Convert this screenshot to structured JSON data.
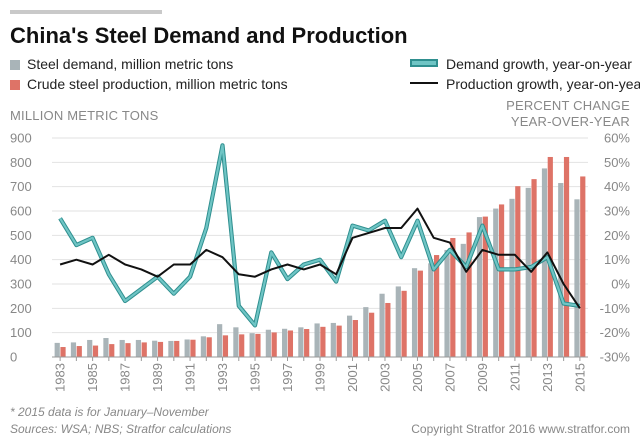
{
  "title": "China's Steel Demand and Production",
  "legend": {
    "demand_bar": "Steel demand, million metric tons",
    "production_bar": "Crude steel production, million metric tons",
    "demand_growth": "Demand growth, year-on-year",
    "production_growth": "Production growth, year-on-year"
  },
  "left_axis_title": "MILLION METRIC TONS",
  "right_axis_title": [
    "PERCENT CHANGE",
    "YEAR-OVER-YEAR"
  ],
  "footnote": "* 2015 data is for January–November",
  "sources": "Sources: WSA; NBS; Stratfor calculations",
  "credit": "Copyright Stratfor 2016   www.stratfor.com",
  "colors": {
    "demand_bar": "#a9b4b8",
    "production_bar": "#de7367",
    "demand_line": "#6fc5c5",
    "production_line": "#111111",
    "grid": "#e2e2e2",
    "tick_text": "#888888"
  },
  "chart_data": {
    "type": "bar",
    "categories": [
      "1983",
      "1984",
      "1985",
      "1986",
      "1987",
      "1988",
      "1989",
      "1990",
      "1991",
      "1992",
      "1993",
      "1994",
      "1995",
      "1996",
      "1997",
      "1998",
      "1999",
      "2000",
      "2001",
      "2002",
      "2003",
      "2004",
      "2005",
      "2006",
      "2007",
      "2008",
      "2009",
      "2010",
      "2011",
      "2012",
      "2013",
      "2014",
      "2015"
    ],
    "x_tick_labels": [
      "1983",
      "1985",
      "1987",
      "1989",
      "1991",
      "1993",
      "1995",
      "1997",
      "1999",
      "2001",
      "2003",
      "2005",
      "2007",
      "2009",
      "2011",
      "2013",
      "2015"
    ],
    "series": [
      {
        "name": "Steel demand, million metric tons",
        "type": "bar",
        "axis": "left",
        "values": [
          58,
          60,
          70,
          78,
          70,
          70,
          67,
          66,
          72,
          85,
          135,
          122,
          98,
          112,
          116,
          122,
          138,
          140,
          170,
          205,
          260,
          290,
          365,
          385,
          440,
          465,
          575,
          610,
          650,
          695,
          775,
          715,
          648
        ]
      },
      {
        "name": "Crude steel production, million metric tons",
        "type": "bar",
        "axis": "left",
        "values": [
          41,
          45,
          47,
          53,
          57,
          60,
          62,
          66,
          71,
          81,
          89,
          93,
          95,
          101,
          109,
          115,
          124,
          129,
          152,
          182,
          222,
          272,
          355,
          419,
          489,
          512,
          577,
          627,
          702,
          731,
          822,
          822,
          742
        ]
      },
      {
        "name": "Demand growth, year-on-year",
        "type": "line",
        "axis": "right",
        "values": [
          27,
          16,
          19,
          4,
          -7,
          -2,
          3,
          -4,
          3,
          23,
          57,
          -9,
          -17,
          13,
          2,
          8,
          10,
          1,
          24,
          22,
          26,
          11,
          26,
          6,
          14,
          7,
          24,
          6,
          6,
          7,
          11,
          -8,
          -9
        ]
      },
      {
        "name": "Production growth, year-on-year",
        "type": "line",
        "axis": "right",
        "values": [
          8,
          10,
          8,
          12,
          8,
          6,
          3,
          8,
          8,
          14,
          11,
          4,
          3,
          6,
          8,
          6,
          8,
          4,
          19,
          21,
          23,
          23,
          31,
          19,
          17,
          5,
          14,
          12,
          12,
          5,
          13,
          0,
          -10
        ]
      }
    ],
    "ylim_left": [
      0,
      900
    ],
    "yticks_left": [
      0,
      100,
      200,
      300,
      400,
      500,
      600,
      700,
      800,
      900
    ],
    "ylim_right": [
      -30,
      60
    ],
    "yticks_right": [
      "-30%",
      "-20%",
      "-10%",
      "0%",
      "10%",
      "20%",
      "30%",
      "40%",
      "50%",
      "60%"
    ],
    "grid": true,
    "legend_position": "top"
  }
}
